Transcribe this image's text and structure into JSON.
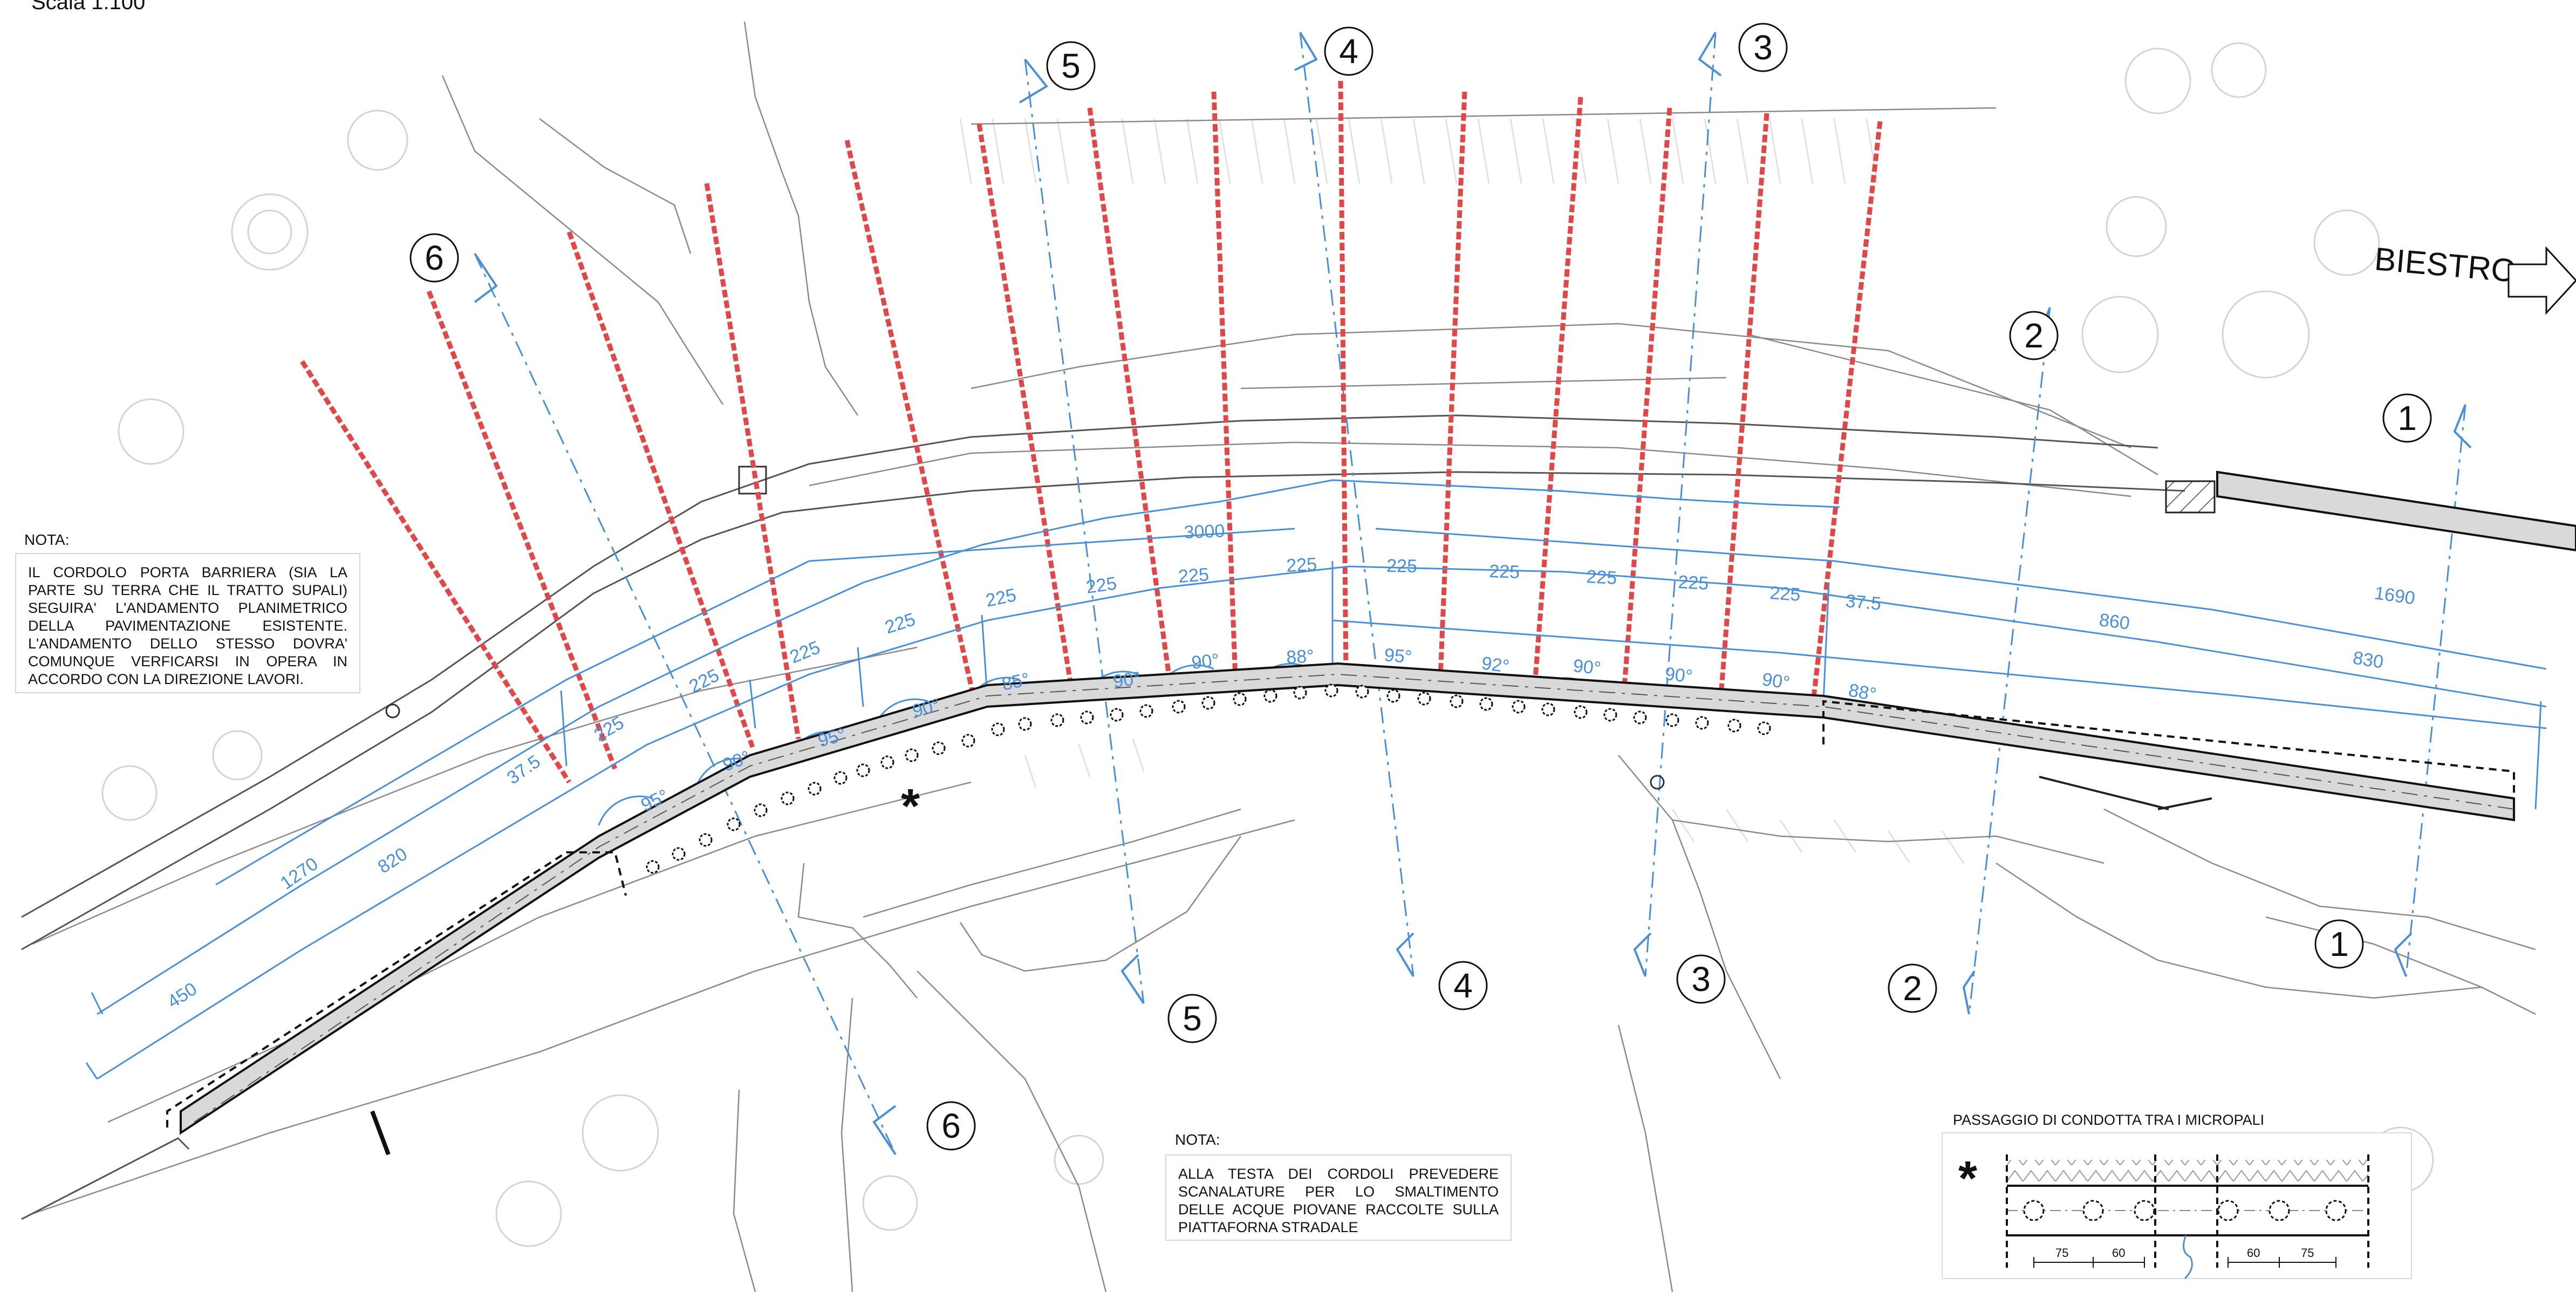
{
  "scale_label": "Scala 1:100",
  "direction_label": "BIESTRO",
  "notes": {
    "left": {
      "title": "NOTA:",
      "text": "IL CORDOLO PORTA BARRIERA (SIA LA PARTE SU TERRA CHE IL TRATTO SUPALI) SEGUIRA' L'ANDAMENTO PLANIMETRICO DELLA PAVIMENTAZIONE ESISTENTE. L'ANDAMENTO DELLO STESSO DOVRA' COMUNQUE VERFICARSI IN OPERA IN ACCORDO CON LA DIREZIONE LAVORI."
    },
    "bottom": {
      "title": "NOTA:",
      "text": "ALLA TESTA DEI CORDOLI PREVEDERE SCANALATURE PER LO SMALTIMENTO DELLE ACQUE PIOVANE RACCOLTE SULLA PIATTAFORNA STRADALE"
    }
  },
  "section_markers": {
    "top": [
      "6",
      "5",
      "4",
      "3",
      "2",
      "1"
    ],
    "bottom": [
      "6",
      "5",
      "4",
      "3",
      "2",
      "1"
    ]
  },
  "dimensions": {
    "outer": [
      "3000",
      "1690"
    ],
    "spacing": [
      "37.5",
      "225",
      "225",
      "225",
      "225",
      "225",
      "225",
      "225",
      "225",
      "225",
      "225",
      "225",
      "225",
      "225",
      "37.5"
    ],
    "inner": [
      "450",
      "1270",
      "820",
      "860",
      "830"
    ]
  },
  "angles": [
    "95°",
    "90°",
    "95°",
    "90°",
    "85°",
    "90°",
    "90°",
    "88°",
    "95°",
    "92°",
    "90°",
    "90°",
    "90°",
    "88°"
  ],
  "detail": {
    "title": "PASSAGGIO DI CONDOTTA TRA I MICROPALI",
    "marker": "*",
    "dims_left": [
      "75",
      "60"
    ],
    "dims_right": [
      "60",
      "75"
    ]
  },
  "asterisk_marker": "*",
  "colors": {
    "dimension_blue": "#4a90d9",
    "pile_red": "#e04848",
    "curb_fill": "#d9d9d9",
    "line_dark": "#222222",
    "terrain_gray": "#888888"
  }
}
